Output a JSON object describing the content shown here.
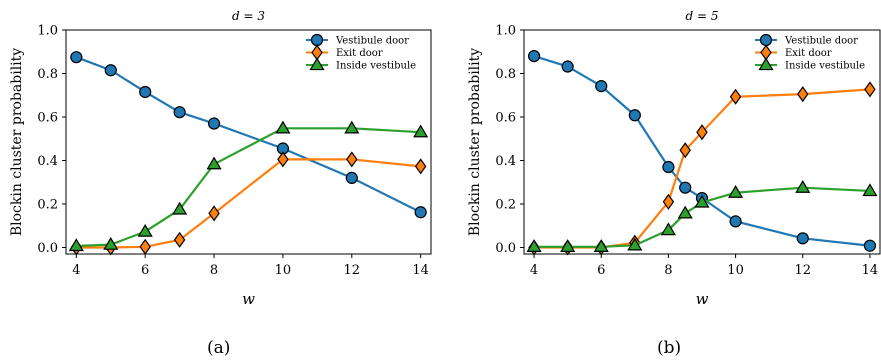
{
  "figure": {
    "captions": [
      "(a)",
      "(b)"
    ]
  },
  "colors": {
    "vestibule_door": "#1f77b4",
    "exit_door": "#ff7f0e",
    "inside_vestibule": "#2ca02c"
  },
  "chart_data": [
    {
      "type": "line",
      "title": "d = 3",
      "xlabel": "w",
      "ylabel": "Blockin cluster probability",
      "xlim": [
        3.7,
        14.3
      ],
      "ylim": [
        -0.03,
        1.0
      ],
      "xticks": [
        4,
        6,
        8,
        10,
        12,
        14
      ],
      "yticks": [
        0.0,
        0.2,
        0.4,
        0.6,
        0.8,
        1.0
      ],
      "ytick_labels": [
        "0.0",
        "0.2",
        "0.4",
        "0.6",
        "0.8",
        "1.0"
      ],
      "legend_position": "top-right",
      "series": [
        {
          "name": "Vestibule door",
          "marker": "circle",
          "color": "#1f77b4",
          "x": [
            4,
            5,
            6,
            7,
            8,
            10,
            12,
            14
          ],
          "y": [
            0.875,
            0.815,
            0.715,
            0.622,
            0.57,
            0.455,
            0.32,
            0.162
          ]
        },
        {
          "name": "Exit door",
          "marker": "diamond",
          "color": "#ff7f0e",
          "x": [
            4,
            5,
            6,
            7,
            8,
            10,
            12,
            14
          ],
          "y": [
            0.0,
            0.0,
            0.003,
            0.035,
            0.157,
            0.405,
            0.405,
            0.373
          ]
        },
        {
          "name": "Inside vestibule",
          "marker": "triangle",
          "color": "#2ca02c",
          "x": [
            4,
            5,
            6,
            7,
            8,
            10,
            12,
            14
          ],
          "y": [
            0.007,
            0.013,
            0.073,
            0.175,
            0.383,
            0.548,
            0.548,
            0.53
          ]
        }
      ]
    },
    {
      "type": "line",
      "title": "d = 5",
      "xlabel": "w",
      "ylabel": "Blockin cluster probability",
      "xlim": [
        3.7,
        14.3
      ],
      "ylim": [
        -0.03,
        1.0
      ],
      "xticks": [
        4,
        6,
        8,
        10,
        12,
        14
      ],
      "yticks": [
        0.0,
        0.2,
        0.4,
        0.6,
        0.8,
        1.0
      ],
      "ytick_labels": [
        "0.0",
        "0.2",
        "0.4",
        "0.6",
        "0.8",
        "1.0"
      ],
      "legend_position": "top-right",
      "series": [
        {
          "name": "Vestibule door",
          "marker": "circle",
          "color": "#1f77b4",
          "x": [
            4,
            5,
            6,
            7,
            8,
            8.5,
            9,
            10,
            12,
            14
          ],
          "y": [
            0.88,
            0.832,
            0.742,
            0.608,
            0.37,
            0.275,
            0.227,
            0.12,
            0.042,
            0.008
          ]
        },
        {
          "name": "Exit door",
          "marker": "diamond",
          "color": "#ff7f0e",
          "x": [
            4,
            5,
            6,
            7,
            8,
            8.5,
            9,
            10,
            12,
            14
          ],
          "y": [
            0.0,
            0.0,
            0.0,
            0.022,
            0.21,
            0.447,
            0.53,
            0.693,
            0.705,
            0.727
          ]
        },
        {
          "name": "Inside vestibule",
          "marker": "triangle",
          "color": "#2ca02c",
          "x": [
            4,
            5,
            6,
            7,
            8,
            8.5,
            9,
            10,
            12,
            14
          ],
          "y": [
            0.003,
            0.003,
            0.003,
            0.01,
            0.08,
            0.157,
            0.207,
            0.252,
            0.275,
            0.26
          ]
        }
      ]
    }
  ]
}
